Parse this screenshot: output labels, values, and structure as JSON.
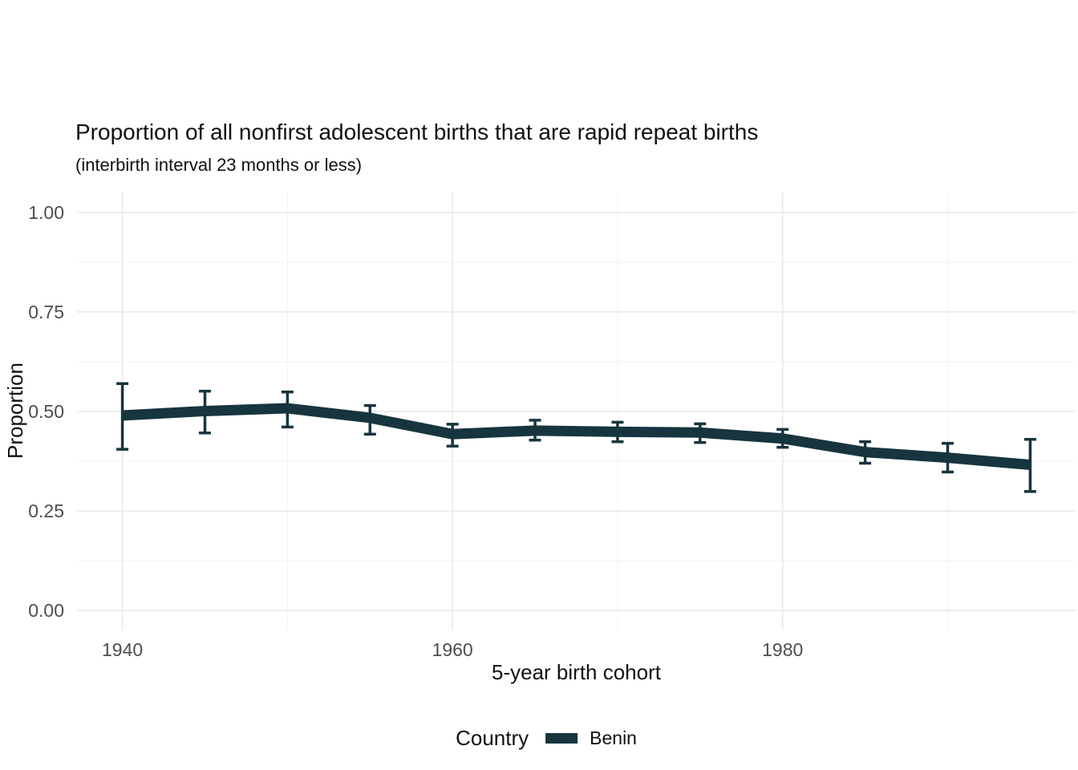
{
  "colors": {
    "series": "#16353F",
    "grid_major": "#E8E8E8",
    "grid_minor": "#F2F2F2",
    "tick_label": "#4D4D4D",
    "text": "#111111",
    "background": "#FFFFFF"
  },
  "chart_data": {
    "type": "line",
    "title": "Proportion of all nonfirst adolescent births that are rapid repeat births",
    "subtitle": "(interbirth interval 23 months or less)",
    "xlabel": "5-year birth cohort",
    "ylabel": "Proportion",
    "grid": true,
    "error_bars": true,
    "xlim": [
      1937.25,
      1997.75
    ],
    "ylim": [
      -0.05,
      1.05
    ],
    "ylim_data": [
      0,
      1
    ],
    "x_ticks": {
      "values": [
        1940,
        1960,
        1980
      ],
      "labels": [
        "1940",
        "1960",
        "1980"
      ]
    },
    "x_minor": [
      1950,
      1970,
      1990
    ],
    "y_ticks": {
      "values": [
        0,
        0.25,
        0.5,
        0.75,
        1.0
      ],
      "labels": [
        "0.00",
        "0.25",
        "0.50",
        "0.75",
        "1.00"
      ]
    },
    "y_minor": [
      0.125,
      0.375,
      0.625,
      0.875
    ],
    "series": [
      {
        "name": "Benin",
        "color": "#16353F",
        "x": [
          1940,
          1945,
          1950,
          1955,
          1960,
          1965,
          1970,
          1975,
          1980,
          1985,
          1990,
          1995
        ],
        "y": [
          0.49,
          0.501,
          0.508,
          0.484,
          0.443,
          0.452,
          0.449,
          0.447,
          0.432,
          0.398,
          0.384,
          0.366
        ],
        "y_lower": [
          0.405,
          0.446,
          0.461,
          0.443,
          0.413,
          0.428,
          0.424,
          0.422,
          0.41,
          0.37,
          0.348,
          0.299
        ],
        "y_upper": [
          0.57,
          0.551,
          0.549,
          0.515,
          0.468,
          0.478,
          0.473,
          0.469,
          0.455,
          0.424,
          0.42,
          0.43
        ]
      }
    ],
    "legend": {
      "title": "Country",
      "position": "bottom",
      "items": [
        {
          "label": "Benin",
          "color": "#16353F"
        }
      ]
    }
  }
}
